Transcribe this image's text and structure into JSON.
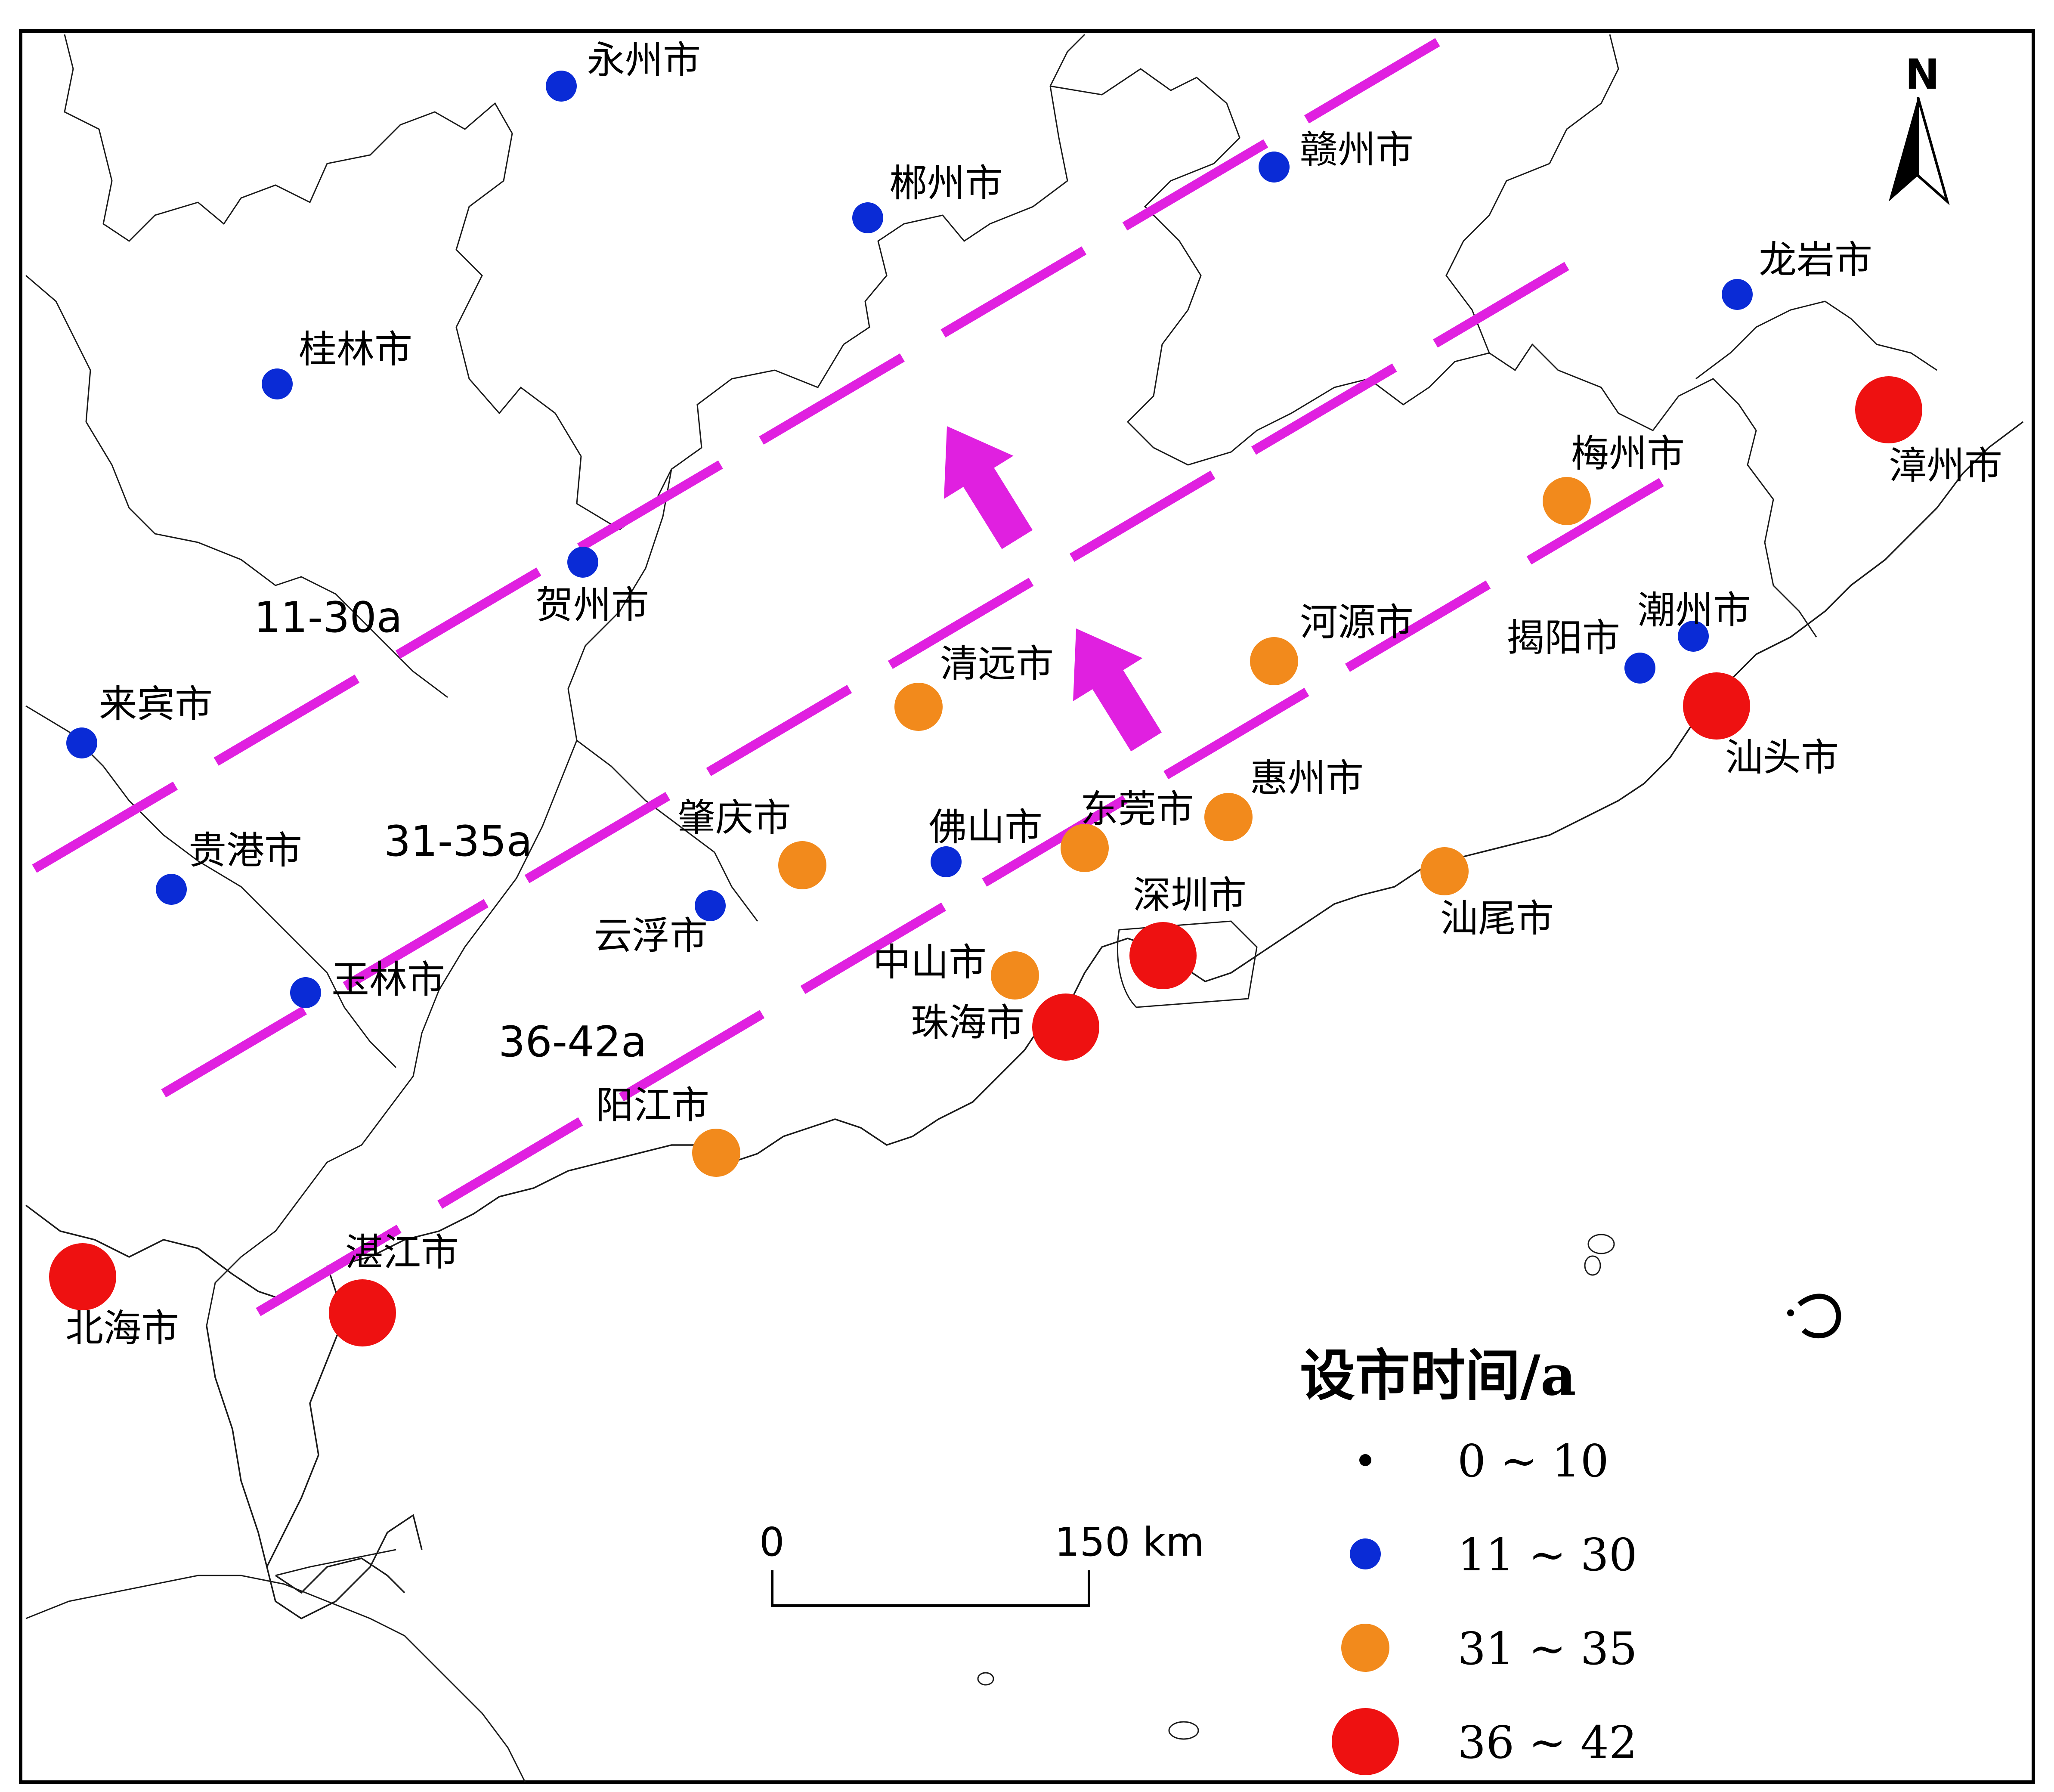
{
  "legend": {
    "title": "设市时间/a",
    "classes": [
      {
        "label": "0 ~ 10",
        "color": "#000000"
      },
      {
        "label": "11 ~ 30",
        "color": "#0a2bd6"
      },
      {
        "label": "31 ~ 35",
        "color": "#f28a1c"
      },
      {
        "label": "36 ~ 42",
        "color": "#ee1111"
      }
    ]
  },
  "bands": [
    {
      "label": "11-30a"
    },
    {
      "label": "31-35a"
    },
    {
      "label": "36-42a"
    }
  ],
  "band_color": "#e020e0",
  "scale_bar": {
    "start_label": "0",
    "end_label": "150 km"
  },
  "north_arrow": {
    "label": "N"
  },
  "cities": [
    {
      "name": "永州市",
      "class": "11 ~ 30"
    },
    {
      "name": "赣州市",
      "class": "11 ~ 30"
    },
    {
      "name": "郴州市",
      "class": "11 ~ 30"
    },
    {
      "name": "龙岩市",
      "class": "11 ~ 30"
    },
    {
      "name": "桂林市",
      "class": "11 ~ 30"
    },
    {
      "name": "漳州市",
      "class": "36 ~ 42"
    },
    {
      "name": "梅州市",
      "class": "31 ~ 35"
    },
    {
      "name": "贺州市",
      "class": "11 ~ 30"
    },
    {
      "name": "潮州市",
      "class": "11 ~ 30"
    },
    {
      "name": "河源市",
      "class": "31 ~ 35"
    },
    {
      "name": "揭阳市",
      "class": "11 ~ 30"
    },
    {
      "name": "清远市",
      "class": "31 ~ 35"
    },
    {
      "name": "汕头市",
      "class": "36 ~ 42"
    },
    {
      "name": "来宾市",
      "class": "11 ~ 30"
    },
    {
      "name": "惠州市",
      "class": "31 ~ 35"
    },
    {
      "name": "东莞市",
      "class": "31 ~ 35"
    },
    {
      "name": "肇庆市",
      "class": "31 ~ 35"
    },
    {
      "name": "佛山市",
      "class": "11 ~ 30"
    },
    {
      "name": "贵港市",
      "class": "11 ~ 30"
    },
    {
      "name": "汕尾市",
      "class": "31 ~ 35"
    },
    {
      "name": "云浮市",
      "class": "11 ~ 30"
    },
    {
      "name": "深圳市",
      "class": "36 ~ 42"
    },
    {
      "name": "玉林市",
      "class": "11 ~ 30"
    },
    {
      "name": "中山市",
      "class": "31 ~ 35"
    },
    {
      "name": "珠海市",
      "class": "36 ~ 42"
    },
    {
      "name": "阳江市",
      "class": "31 ~ 35"
    },
    {
      "name": "湛江市",
      "class": "36 ~ 42"
    },
    {
      "name": "北海市",
      "class": "36 ~ 42"
    }
  ]
}
